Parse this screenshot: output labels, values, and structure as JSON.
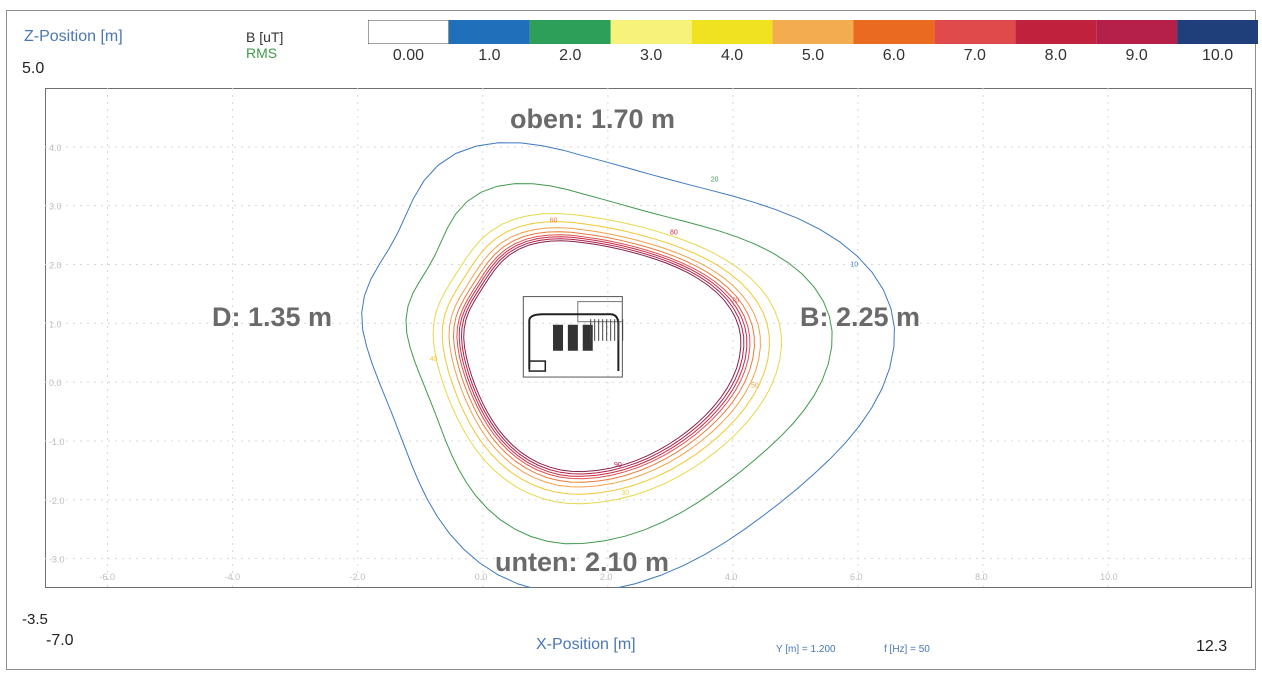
{
  "header": {
    "z_axis_label": "Z-Position [m]",
    "z_max": "5.0",
    "unit_label": "B [uT]",
    "mode_label": "RMS",
    "colorbar": {
      "ticks": [
        "0.00",
        "1.0",
        "2.0",
        "3.0",
        "4.0",
        "5.0",
        "6.0",
        "7.0",
        "8.0",
        "9.0",
        "10.0"
      ],
      "colors": [
        "#ffffff",
        "#1f6fba",
        "#2e9f58",
        "#f6f27a",
        "#f1e221",
        "#f3ac50",
        "#ea6a1f",
        "#e14a4a",
        "#c0213c",
        "#b4204a",
        "#1f3f7a"
      ]
    }
  },
  "footer": {
    "z_min": "-3.5",
    "x_min": "-7.0",
    "x_axis_label": "X-Position [m]",
    "y_info": "Y [m] = 1.200",
    "f_info": "f [Hz] = 50",
    "x_max": "12.3"
  },
  "annotations": {
    "top": "oben: 1.70 m",
    "left": "D: 1.35 m",
    "right": "B: 2.25 m",
    "bottom": "unten: 2.10 m"
  },
  "chart_data": {
    "type": "contour",
    "quantity": "B [uT]",
    "statistic": "RMS",
    "xlabel": "X-Position [m]",
    "ylabel": "Z-Position [m]",
    "xlim": [
      -7.0,
      12.3
    ],
    "ylim": [
      -3.5,
      5.0
    ],
    "x_ticks": [
      -6.0,
      -4.0,
      -2.0,
      0.0,
      2.0,
      4.0,
      6.0,
      8.0,
      10.0
    ],
    "x_tick_labels": [
      "-6.0",
      "-4.0",
      "-2.0",
      "0.0",
      "2.0",
      "4.0",
      "6.0",
      "8.0",
      "10.0"
    ],
    "y_ticks": [
      4.0,
      3.0,
      2.0,
      1.0,
      0.0,
      -1.0,
      -2.0,
      -3.0
    ],
    "y_tick_labels": [
      "4.0",
      "3.0",
      "2.0",
      "1.0",
      "0.0",
      "-1.0",
      "-2.0",
      "-3.0"
    ],
    "grid": true,
    "contour_levels": [
      1.0,
      2.0,
      3.0,
      4.0,
      5.0,
      6.0,
      7.0,
      8.0,
      9.0,
      10.0
    ],
    "level_colors": [
      "#3d78c2",
      "#3f9a4a",
      "#e6d84a",
      "#f0c830",
      "#f2a04a",
      "#e87a3a",
      "#e05050",
      "#cc2a44",
      "#b0204a",
      "#8a1f4a"
    ],
    "level_labels": [
      "10",
      "20",
      "30",
      "40",
      "50",
      "60",
      "70",
      "80",
      "90"
    ],
    "source_center": [
      1.6,
      0.6
    ],
    "source_width": 4.8,
    "source_height": 3.6,
    "contour_1uT_extent": {
      "left": -1.35,
      "right": 2.25,
      "top": 1.7,
      "bottom": -2.1
    },
    "distances": {
      "oben": 1.7,
      "unten": 2.1,
      "D": 1.35,
      "B": 2.25
    }
  }
}
